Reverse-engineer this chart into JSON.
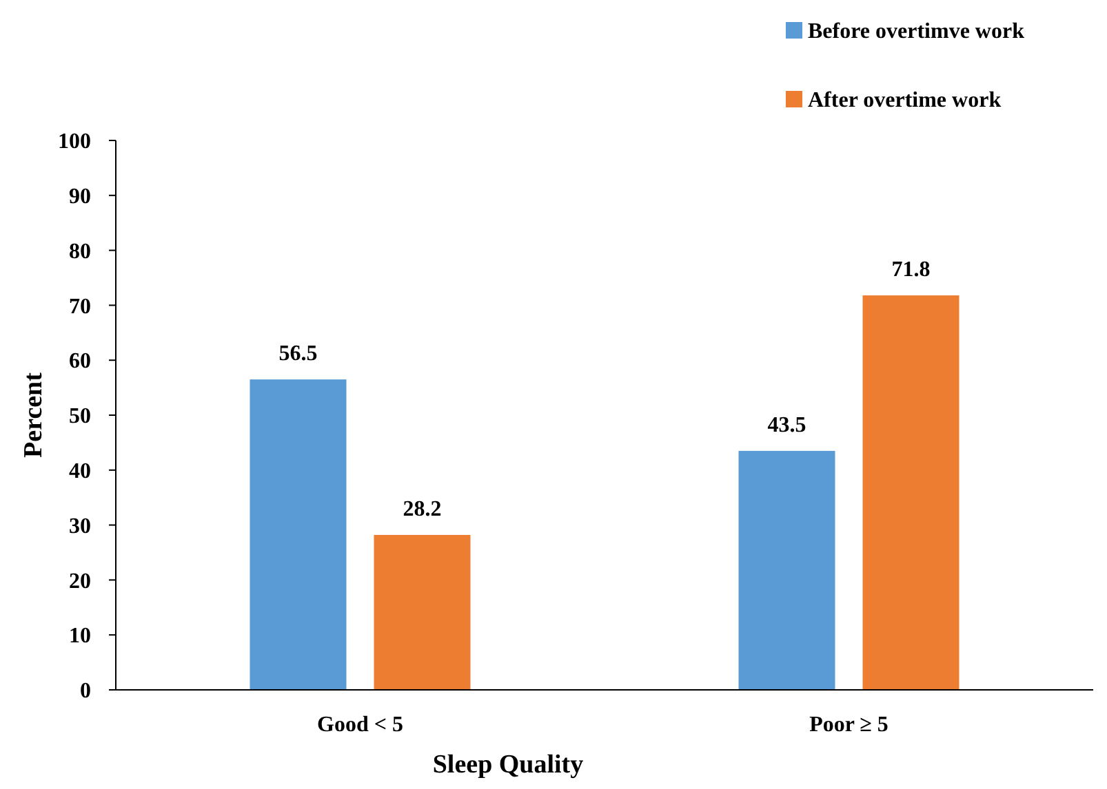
{
  "chart_data": {
    "type": "bar",
    "xlabel": "Sleep Quality",
    "ylabel": "Percent",
    "categories": [
      "Good < 5",
      "Poor ≥ 5"
    ],
    "series": [
      {
        "name": "Before overtimve work",
        "color": "#5b9bd5",
        "values": [
          56.5,
          43.5
        ]
      },
      {
        "name": "After overtime work",
        "color": "#ed7d31",
        "values": [
          28.2,
          71.8
        ]
      }
    ],
    "ylim": [
      0,
      100
    ],
    "yticks": [
      0,
      10,
      20,
      30,
      40,
      50,
      60,
      70,
      80,
      90,
      100
    ],
    "data_labels": true,
    "legend": "top right",
    "grid": false
  }
}
